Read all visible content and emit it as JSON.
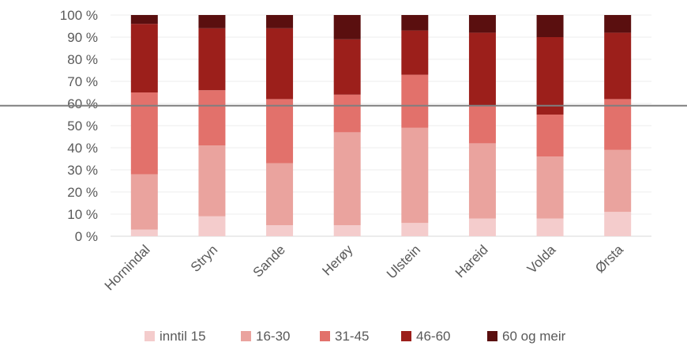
{
  "chart_data": {
    "type": "bar",
    "stacked": true,
    "normalized_percent": true,
    "categories": [
      "Hornindal",
      "Stryn",
      "Sande",
      "Herøy",
      "Ulstein",
      "Hareid",
      "Volda",
      "Ørsta"
    ],
    "series": [
      {
        "name": "inntil 15",
        "color": "#f4cccc",
        "values": [
          3,
          9,
          5,
          5,
          6,
          8,
          8,
          11
        ]
      },
      {
        "name": "16-30",
        "color": "#eaa39e",
        "values": [
          25,
          32,
          28,
          42,
          43,
          34,
          28,
          28
        ]
      },
      {
        "name": "31-45",
        "color": "#e2716b",
        "values": [
          37,
          25,
          29,
          17,
          24,
          17,
          19,
          23
        ]
      },
      {
        "name": "46-60",
        "color": "#9c1f1b",
        "values": [
          31,
          28,
          32,
          25,
          20,
          33,
          35,
          30
        ]
      },
      {
        "name": "60 og meir",
        "color": "#5a0f0f",
        "values": [
          4,
          6,
          6,
          11,
          7,
          8,
          10,
          8
        ]
      }
    ],
    "y_ticks": [
      "0 %",
      "10 %",
      "20 %",
      "30 %",
      "40 %",
      "50 %",
      "60 %",
      "70 %",
      "80 %",
      "90 %",
      "100 %"
    ],
    "ylim": [
      0,
      100
    ],
    "reference_line": 59,
    "grid": true,
    "legend": "bottom",
    "title": "",
    "xlabel": "",
    "ylabel": ""
  }
}
